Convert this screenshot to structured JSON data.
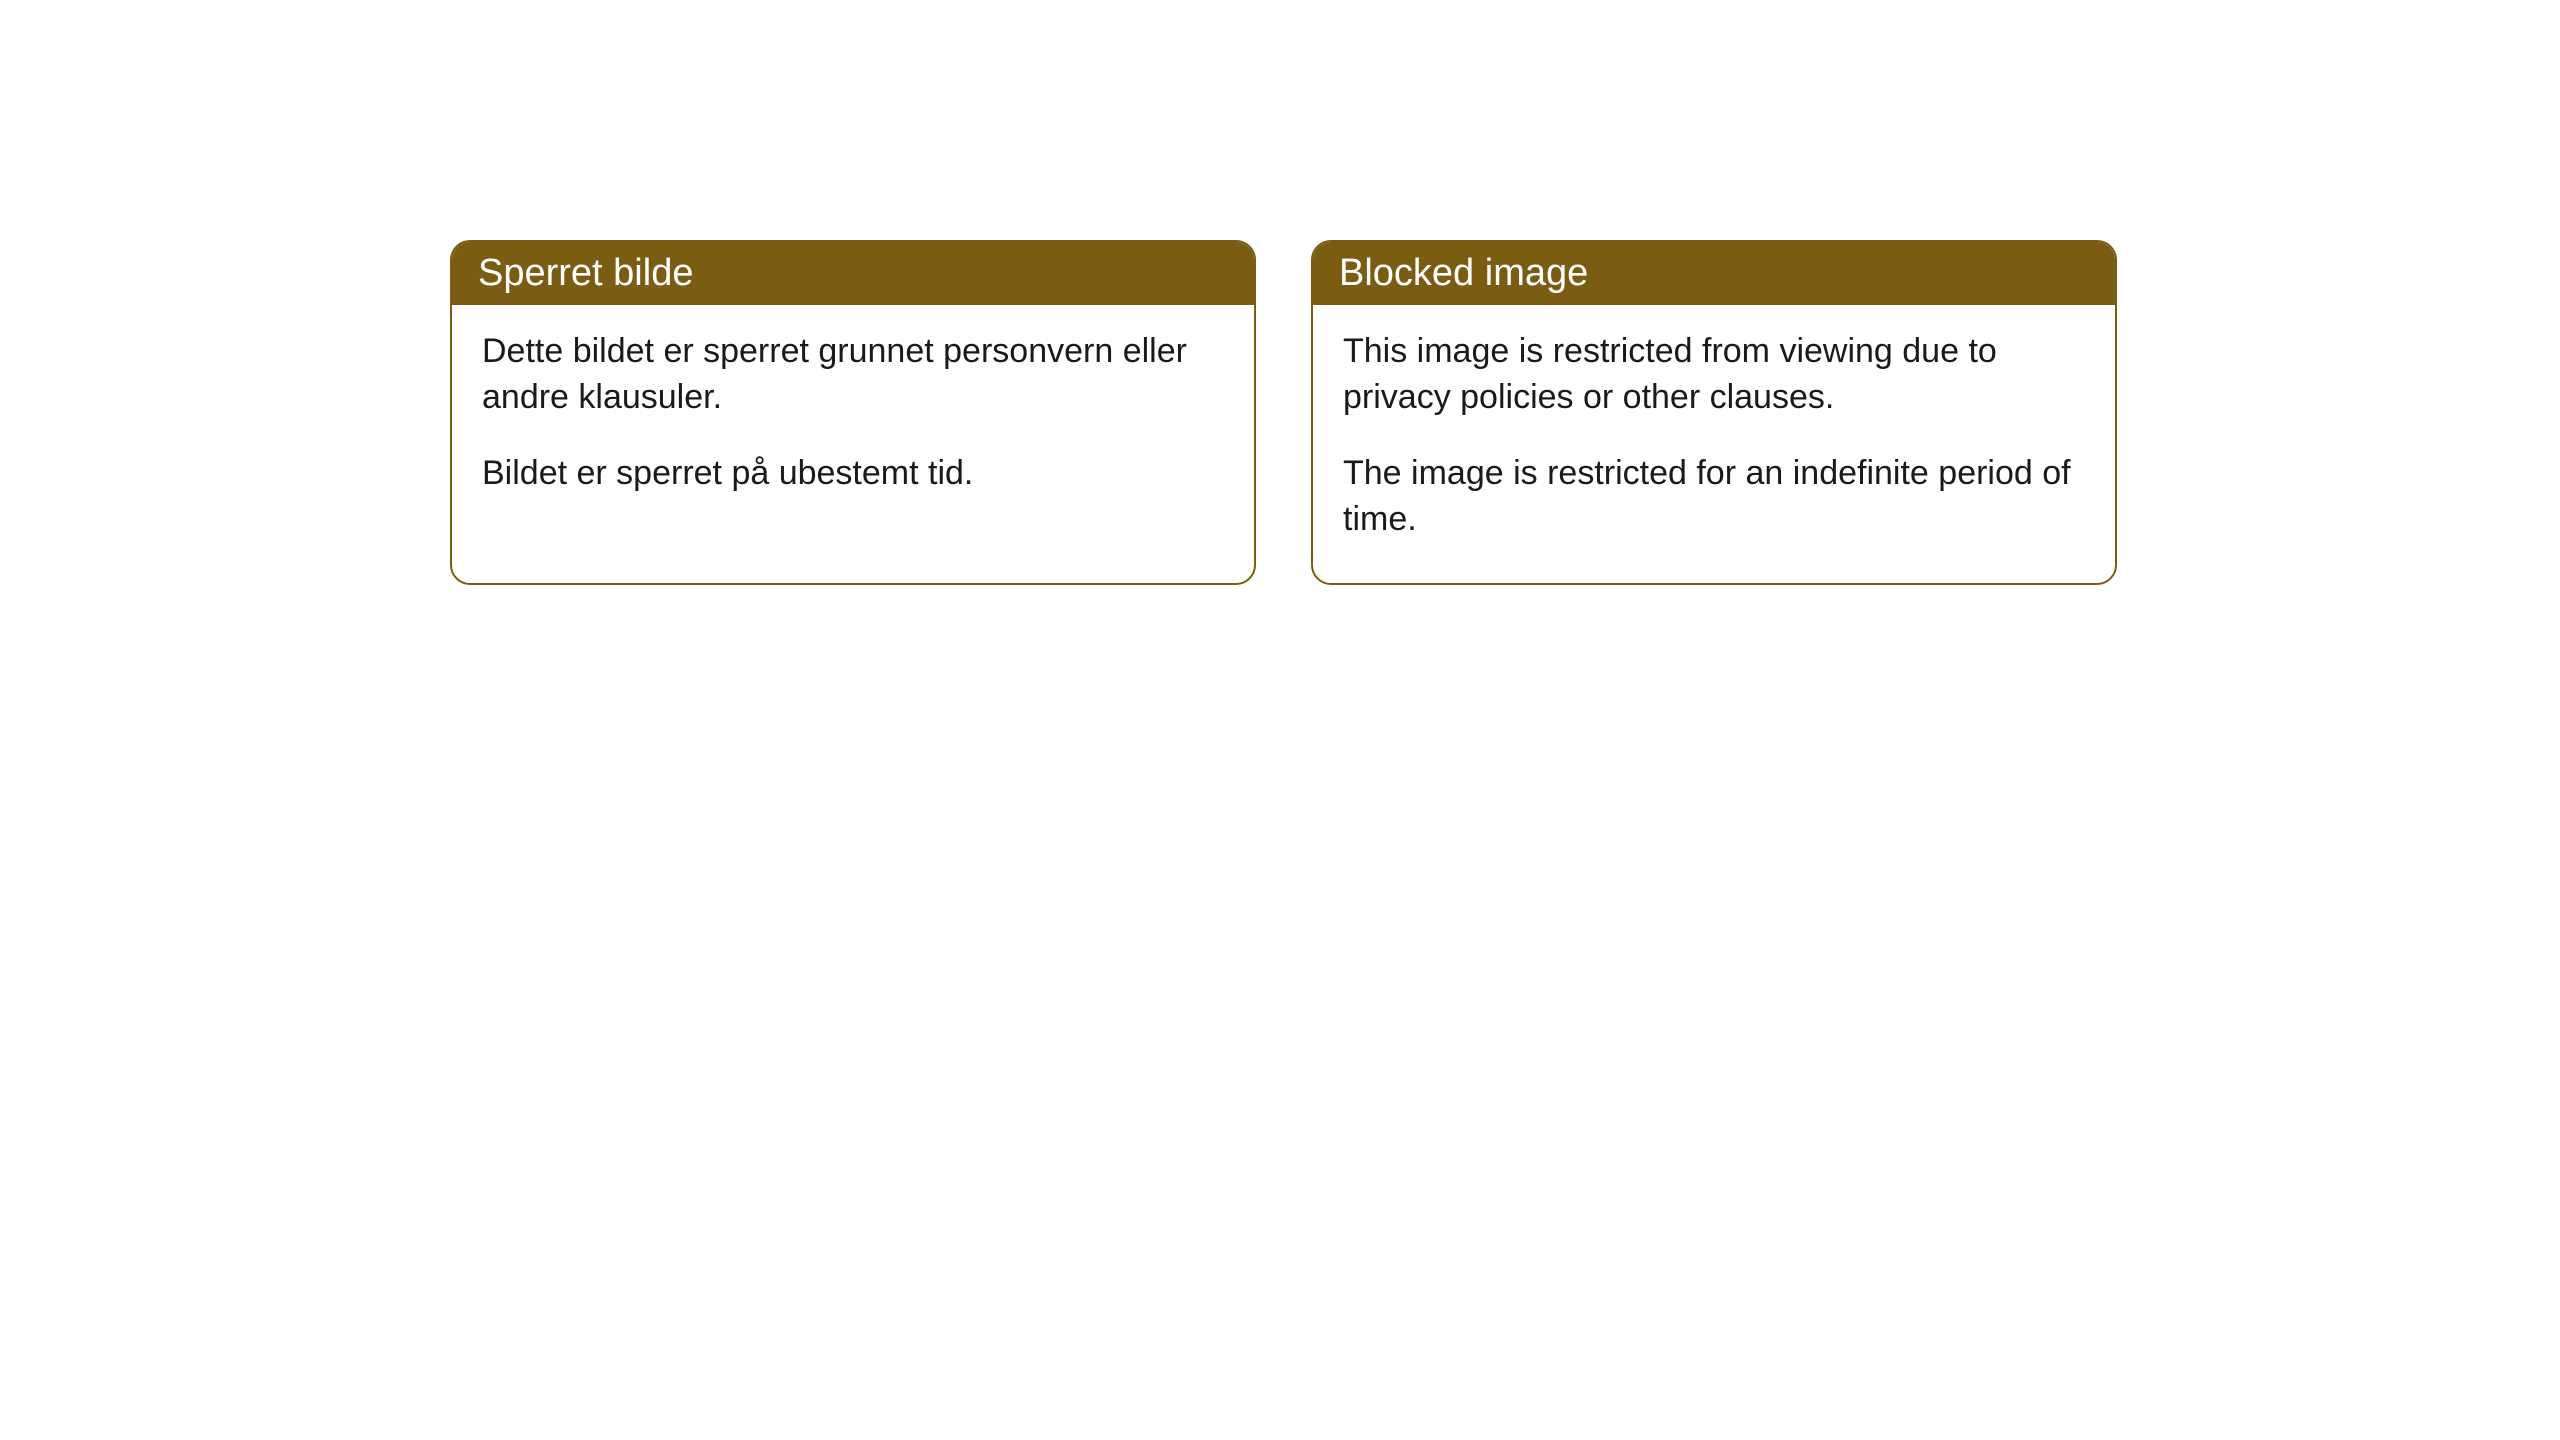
{
  "cards": [
    {
      "title": "Sperret bilde",
      "paragraph1": "Dette bildet er sperret grunnet personvern eller andre klausuler.",
      "paragraph2": "Bildet er sperret på ubestemt tid."
    },
    {
      "title": "Blocked image",
      "paragraph1": "This image is restricted from viewing due to privacy policies or other clauses.",
      "paragraph2": "The image is restricted for an indefinite period of time."
    }
  ],
  "styling": {
    "header_bg_color": "#7a5c13",
    "header_text_color": "#ffffff",
    "border_color": "#7a5c13",
    "body_text_color": "#1a1a1a",
    "card_bg_color": "#ffffff",
    "page_bg_color": "#ffffff",
    "border_radius": 20,
    "header_fontsize": 38,
    "body_fontsize": 34
  }
}
